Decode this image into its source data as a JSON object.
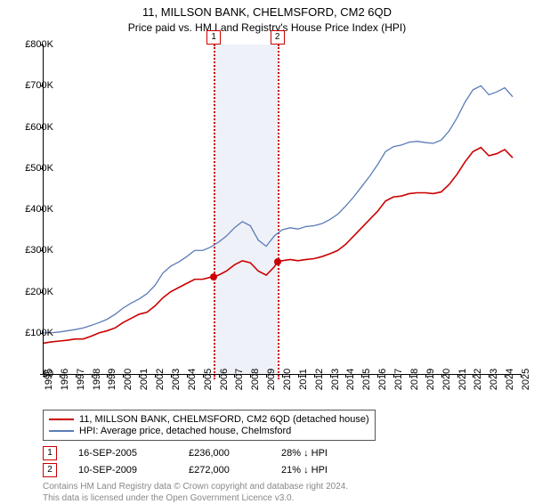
{
  "title": "11, MILLSON BANK, CHELMSFORD, CM2 6QD",
  "subtitle": "Price paid vs. HM Land Registry's House Price Index (HPI)",
  "chart": {
    "type": "line",
    "x_range": [
      1995,
      2025
    ],
    "y_range": [
      0,
      800000
    ],
    "y_ticks": [
      0,
      100000,
      200000,
      300000,
      400000,
      500000,
      600000,
      700000,
      800000
    ],
    "y_tick_labels": [
      "£0",
      "£100K",
      "£200K",
      "£300K",
      "£400K",
      "£500K",
      "£600K",
      "£700K",
      "£800K"
    ],
    "x_ticks": [
      1995,
      1996,
      1997,
      1998,
      1999,
      2000,
      2001,
      2002,
      2003,
      2004,
      2005,
      2006,
      2007,
      2008,
      2009,
      2010,
      2011,
      2012,
      2013,
      2014,
      2015,
      2016,
      2017,
      2018,
      2019,
      2020,
      2021,
      2022,
      2023,
      2024,
      2025
    ],
    "shaded_band": {
      "start": 2005.7,
      "end": 2009.7,
      "color": "#eef1f7"
    },
    "markers": [
      {
        "label": "1",
        "x": 2005.7,
        "box_top_offset": -16
      },
      {
        "label": "2",
        "x": 2009.7,
        "box_top_offset": -16
      }
    ],
    "series": [
      {
        "name": "11, MILLSON BANK, CHELMSFORD, CM2 6QD (detached house)",
        "color": "#cc0000",
        "width": 1.6,
        "points": [
          [
            1995,
            75000
          ],
          [
            1995.5,
            78000
          ],
          [
            1996,
            80000
          ],
          [
            1996.5,
            82000
          ],
          [
            1997,
            85000
          ],
          [
            1997.5,
            85000
          ],
          [
            1998,
            92000
          ],
          [
            1998.5,
            100000
          ],
          [
            1999,
            105000
          ],
          [
            1999.5,
            112000
          ],
          [
            2000,
            125000
          ],
          [
            2000.5,
            135000
          ],
          [
            2001,
            145000
          ],
          [
            2001.5,
            150000
          ],
          [
            2002,
            165000
          ],
          [
            2002.5,
            185000
          ],
          [
            2003,
            200000
          ],
          [
            2003.5,
            210000
          ],
          [
            2004,
            220000
          ],
          [
            2004.5,
            230000
          ],
          [
            2005,
            230000
          ],
          [
            2005.5,
            235000
          ],
          [
            2005.7,
            236000
          ],
          [
            2006,
            240000
          ],
          [
            2006.5,
            250000
          ],
          [
            2007,
            265000
          ],
          [
            2007.5,
            275000
          ],
          [
            2008,
            270000
          ],
          [
            2008.5,
            250000
          ],
          [
            2009,
            240000
          ],
          [
            2009.5,
            260000
          ],
          [
            2009.7,
            272000
          ],
          [
            2010,
            275000
          ],
          [
            2010.5,
            278000
          ],
          [
            2011,
            275000
          ],
          [
            2011.5,
            278000
          ],
          [
            2012,
            280000
          ],
          [
            2012.5,
            285000
          ],
          [
            2013,
            292000
          ],
          [
            2013.5,
            300000
          ],
          [
            2014,
            315000
          ],
          [
            2014.5,
            335000
          ],
          [
            2015,
            355000
          ],
          [
            2015.5,
            375000
          ],
          [
            2016,
            395000
          ],
          [
            2016.5,
            420000
          ],
          [
            2017,
            430000
          ],
          [
            2017.5,
            432000
          ],
          [
            2018,
            438000
          ],
          [
            2018.5,
            440000
          ],
          [
            2019,
            440000
          ],
          [
            2019.5,
            438000
          ],
          [
            2020,
            442000
          ],
          [
            2020.5,
            460000
          ],
          [
            2021,
            485000
          ],
          [
            2021.5,
            515000
          ],
          [
            2022,
            540000
          ],
          [
            2022.5,
            550000
          ],
          [
            2023,
            530000
          ],
          [
            2023.5,
            535000
          ],
          [
            2024,
            545000
          ],
          [
            2024.5,
            525000
          ]
        ],
        "dot_points": [
          [
            2005.7,
            236000
          ],
          [
            2009.7,
            272000
          ]
        ]
      },
      {
        "name": "HPI: Average price, detached house, Chelmsford",
        "color": "#5b7bb8",
        "width": 1.3,
        "points": [
          [
            1995,
            100000
          ],
          [
            1995.5,
            100000
          ],
          [
            1996,
            102000
          ],
          [
            1996.5,
            105000
          ],
          [
            1997,
            108000
          ],
          [
            1997.5,
            112000
          ],
          [
            1998,
            118000
          ],
          [
            1998.5,
            125000
          ],
          [
            1999,
            133000
          ],
          [
            1999.5,
            145000
          ],
          [
            2000,
            160000
          ],
          [
            2000.5,
            172000
          ],
          [
            2001,
            182000
          ],
          [
            2001.5,
            195000
          ],
          [
            2002,
            215000
          ],
          [
            2002.5,
            245000
          ],
          [
            2003,
            262000
          ],
          [
            2003.5,
            272000
          ],
          [
            2004,
            285000
          ],
          [
            2004.5,
            300000
          ],
          [
            2005,
            300000
          ],
          [
            2005.5,
            308000
          ],
          [
            2006,
            320000
          ],
          [
            2006.5,
            335000
          ],
          [
            2007,
            355000
          ],
          [
            2007.5,
            370000
          ],
          [
            2008,
            360000
          ],
          [
            2008.5,
            325000
          ],
          [
            2009,
            310000
          ],
          [
            2009.5,
            335000
          ],
          [
            2010,
            350000
          ],
          [
            2010.5,
            355000
          ],
          [
            2011,
            352000
          ],
          [
            2011.5,
            358000
          ],
          [
            2012,
            360000
          ],
          [
            2012.5,
            365000
          ],
          [
            2013,
            375000
          ],
          [
            2013.5,
            388000
          ],
          [
            2014,
            408000
          ],
          [
            2014.5,
            430000
          ],
          [
            2015,
            455000
          ],
          [
            2015.5,
            480000
          ],
          [
            2016,
            508000
          ],
          [
            2016.5,
            540000
          ],
          [
            2017,
            552000
          ],
          [
            2017.5,
            556000
          ],
          [
            2018,
            563000
          ],
          [
            2018.5,
            565000
          ],
          [
            2019,
            562000
          ],
          [
            2019.5,
            560000
          ],
          [
            2020,
            568000
          ],
          [
            2020.5,
            590000
          ],
          [
            2021,
            622000
          ],
          [
            2021.5,
            660000
          ],
          [
            2022,
            690000
          ],
          [
            2022.5,
            700000
          ],
          [
            2023,
            678000
          ],
          [
            2023.5,
            685000
          ],
          [
            2024,
            695000
          ],
          [
            2024.5,
            673000
          ]
        ]
      }
    ]
  },
  "legend": {
    "items": [
      {
        "color": "#cc0000",
        "label": "11, MILLSON BANK, CHELMSFORD, CM2 6QD (detached house)"
      },
      {
        "color": "#5b7bb8",
        "label": "HPI: Average price, detached house, Chelmsford"
      }
    ]
  },
  "transactions": [
    {
      "marker": "1",
      "date": "16-SEP-2005",
      "price": "£236,000",
      "delta": "28% ↓ HPI"
    },
    {
      "marker": "2",
      "date": "10-SEP-2009",
      "price": "£272,000",
      "delta": "21% ↓ HPI"
    }
  ],
  "copyright": {
    "line1": "Contains HM Land Registry data © Crown copyright and database right 2024.",
    "line2": "This data is licensed under the Open Government Licence v3.0."
  }
}
